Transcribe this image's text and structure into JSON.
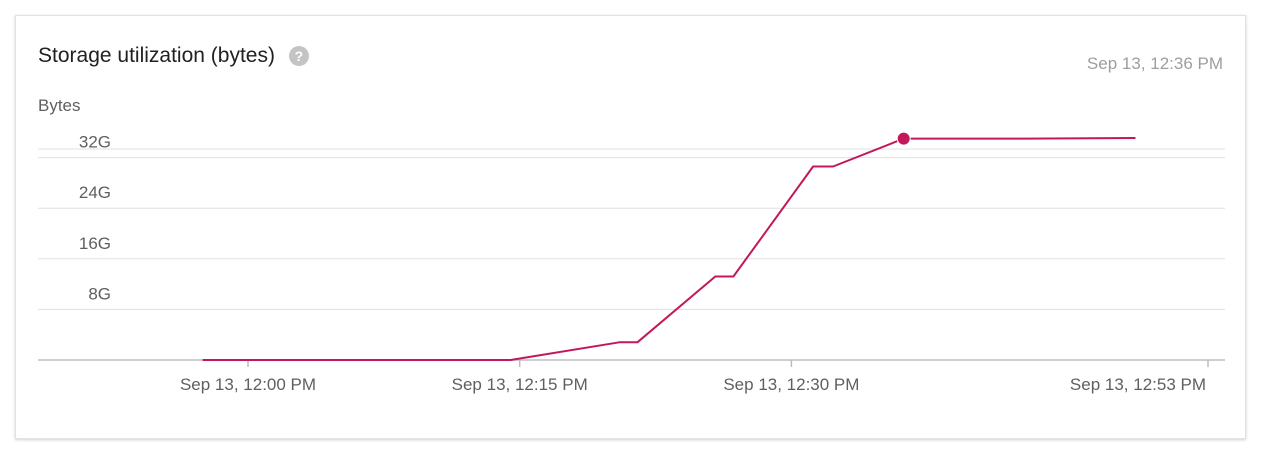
{
  "card": {
    "title": "Storage utilization (bytes)",
    "help_icon": "help-circle-icon",
    "timestamp": "Sep 13, 12:36 PM"
  },
  "colors": {
    "line": "#c2185b",
    "grid": "#e0e0e0",
    "axis": "#bdbdbd"
  },
  "chart_data": {
    "type": "line",
    "title": "Storage utilization (bytes)",
    "ylabel": "Bytes",
    "xlabel": "",
    "ylim": [
      0,
      40
    ],
    "y_unit": "G",
    "y_ticks": [
      {
        "value": 8,
        "label": "8G"
      },
      {
        "value": 16,
        "label": "16G"
      },
      {
        "value": 24,
        "label": "24G"
      },
      {
        "value": 32,
        "label": "32G"
      }
    ],
    "x_ticks": [
      {
        "minute": 0,
        "label": "Sep 13, 12:00 PM"
      },
      {
        "minute": 15,
        "label": "Sep 13, 12:15 PM"
      },
      {
        "minute": 30,
        "label": "Sep 13, 12:30 PM"
      },
      {
        "minute": 53,
        "label": "Sep 13, 12:53 PM"
      }
    ],
    "xlim": [
      -2.5,
      53
    ],
    "grid": true,
    "series": [
      {
        "values": [
          {
            "minute": -2.5,
            "y": 0
          },
          {
            "minute": 14.5,
            "y": 0
          },
          {
            "minute": 20.5,
            "y": 2.8
          },
          {
            "minute": 21.5,
            "y": 2.8
          },
          {
            "minute": 25.8,
            "y": 13.2
          },
          {
            "minute": 26.8,
            "y": 13.2
          },
          {
            "minute": 31.2,
            "y": 30.6
          },
          {
            "minute": 32.3,
            "y": 30.6
          },
          {
            "minute": 36.2,
            "y": 35.0
          },
          {
            "minute": 43.0,
            "y": 35.0
          },
          {
            "minute": 49.0,
            "y": 35.1
          }
        ]
      }
    ],
    "highlight": {
      "minute": 36.2,
      "y": 35.0
    }
  }
}
